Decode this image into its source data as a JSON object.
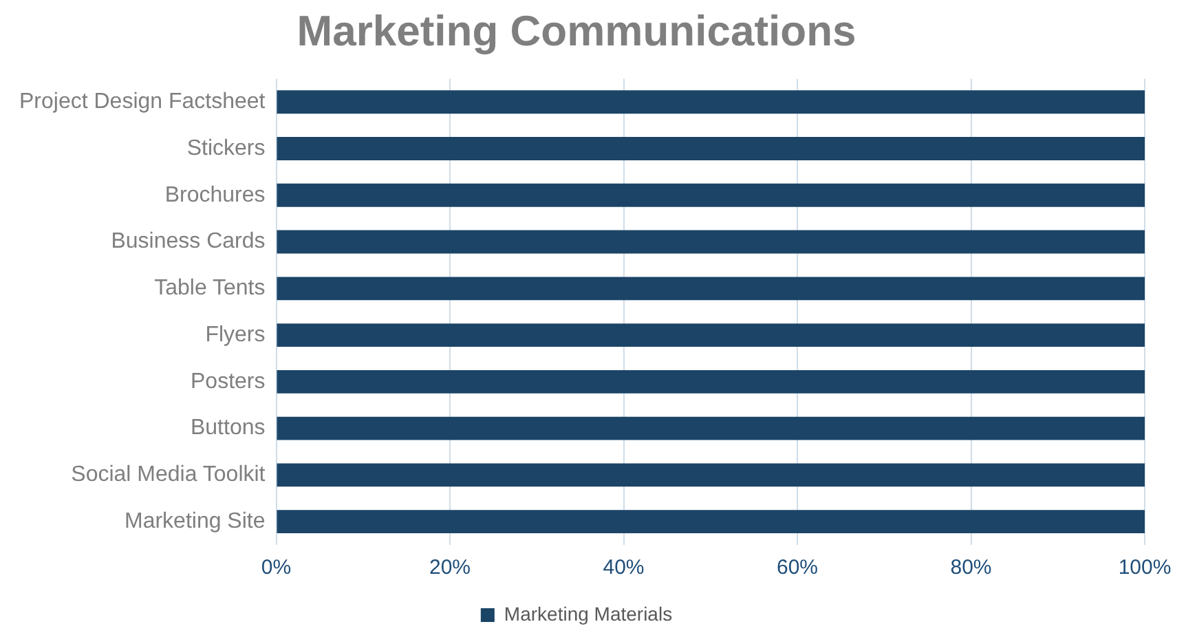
{
  "chart_data": {
    "type": "bar",
    "orientation": "horizontal",
    "title": "Marketing Communications",
    "categories": [
      "Project Design Factsheet",
      "Stickers",
      "Brochures",
      "Business Cards",
      "Table Tents",
      "Flyers",
      "Posters",
      "Buttons",
      "Social Media Toolkit",
      "Marketing Site"
    ],
    "series": [
      {
        "name": "Marketing Materials",
        "color": "#1b4467",
        "values": [
          100,
          100,
          100,
          100,
          100,
          100,
          100,
          100,
          100,
          100
        ]
      }
    ],
    "xlim": [
      0,
      100
    ],
    "xticks": [
      {
        "value": 0,
        "label": "0%"
      },
      {
        "value": 20,
        "label": "20%"
      },
      {
        "value": 40,
        "label": "40%"
      },
      {
        "value": 60,
        "label": "60%"
      },
      {
        "value": 80,
        "label": "80%"
      },
      {
        "value": 100,
        "label": "100%"
      }
    ],
    "grid": "x",
    "legend": "bottom"
  }
}
